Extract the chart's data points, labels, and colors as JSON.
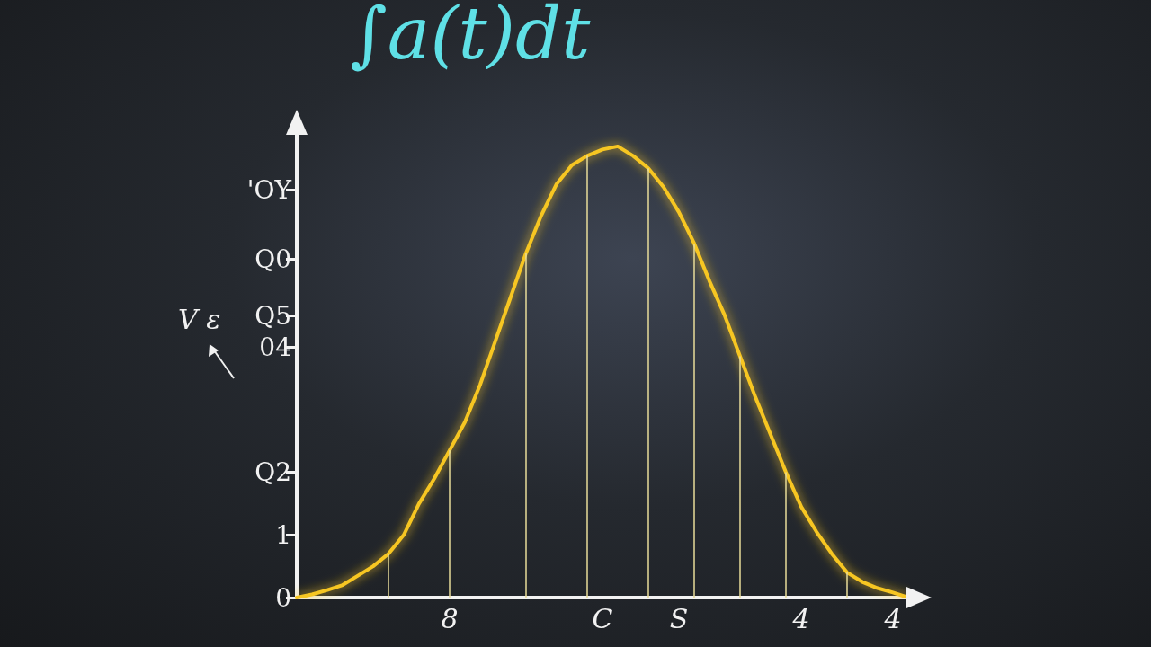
{
  "chart_data": {
    "type": "line",
    "title": "∫a(t)dt",
    "annotations": [
      "V ε"
    ],
    "categories": [
      null,
      null,
      null,
      null,
      null,
      null,
      null,
      null,
      null,
      null,
      "8",
      null,
      null,
      null,
      null,
      null,
      null,
      null,
      null,
      null,
      "C",
      null,
      null,
      null,
      null,
      "S",
      null,
      null,
      null,
      null,
      null,
      null,
      null,
      "4",
      null,
      null,
      null,
      null,
      null,
      "4",
      null
    ],
    "series": [
      {
        "color": "#f7c623",
        "line_style": "solid",
        "values": [
          0,
          0.05,
          0.12,
          0.2,
          0.35,
          0.5,
          0.7,
          1.0,
          1.5,
          1.9,
          2.35,
          2.8,
          3.4,
          4.1,
          4.8,
          5.5,
          6.1,
          6.6,
          6.9,
          7.05,
          7.15,
          7.2,
          7.05,
          6.85,
          6.55,
          6.15,
          5.65,
          5.05,
          4.5,
          3.85,
          3.2,
          2.6,
          2.0,
          1.45,
          1.05,
          0.7,
          0.4,
          0.25,
          0.15,
          0.08,
          0
        ]
      },
      {
        "type": "bar",
        "color": "#e8dc9a",
        "values": [
          null,
          null,
          null,
          null,
          null,
          null,
          0.7,
          null,
          null,
          null,
          2.35,
          null,
          null,
          null,
          null,
          5.5,
          null,
          null,
          null,
          7.05,
          null,
          null,
          null,
          6.85,
          null,
          null,
          5.65,
          null,
          null,
          3.85,
          null,
          null,
          2.0,
          null,
          null,
          null,
          0.4,
          null,
          null,
          null,
          null
        ]
      }
    ],
    "ylim": [
      0,
      7.6
    ],
    "yticks": [
      0,
      1,
      {
        "value": 2.0,
        "label": "Q2"
      },
      {
        "value": 4,
        "label": "04"
      },
      {
        "value": 4.5,
        "label": "Q5"
      },
      {
        "value": 5.4,
        "label": "Q0"
      },
      {
        "value": 6.5,
        "label": "'OY"
      }
    ],
    "grid": false,
    "marker": "none"
  }
}
